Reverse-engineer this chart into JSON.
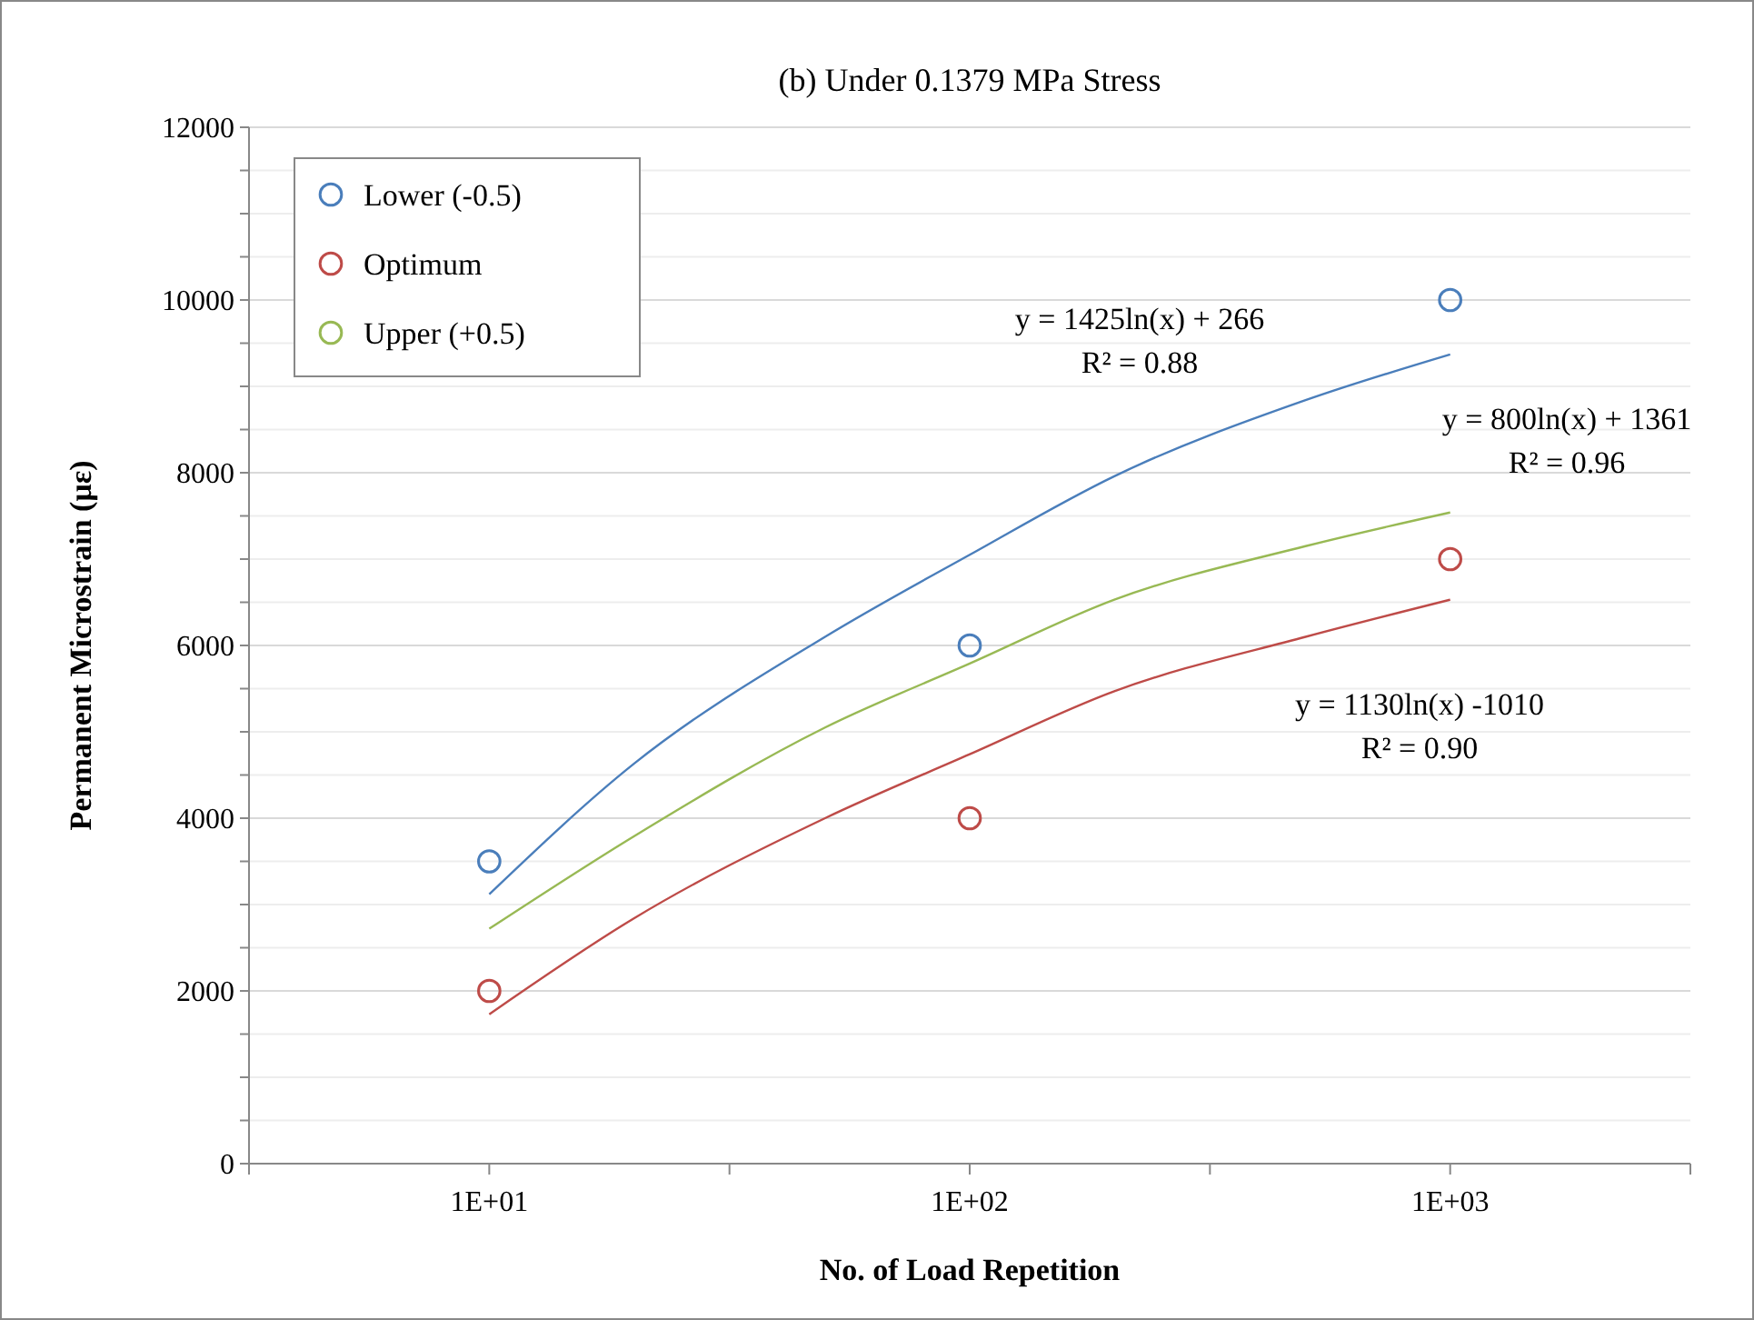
{
  "chart_data": {
    "type": "scatter",
    "title": "(b) Under 0.1379 MPa Stress",
    "xlabel": "No. of Load Repetition",
    "ylabel": "Permanent Microstrain (με)",
    "log": "x",
    "xlim": [
      3.162,
      3162
    ],
    "xticks": [
      {
        "value": 3.162,
        "label": null
      },
      {
        "value": 10,
        "label": "1E+01"
      },
      {
        "value": 31.62,
        "label": null
      },
      {
        "value": 100,
        "label": "1E+02"
      },
      {
        "value": 316.2,
        "label": null
      },
      {
        "value": 1000,
        "label": "1E+03"
      },
      {
        "value": 3162,
        "label": null
      }
    ],
    "ylim": [
      0,
      12000
    ],
    "yticks": [
      0,
      {
        "value": 500,
        "label": null
      },
      {
        "value": 1000,
        "label": null
      },
      {
        "value": 1500,
        "label": null
      },
      2000,
      {
        "value": 2500,
        "label": null
      },
      {
        "value": 3000,
        "label": null
      },
      {
        "value": 3500,
        "label": null
      },
      4000,
      {
        "value": 4500,
        "label": null
      },
      {
        "value": 5000,
        "label": null
      },
      {
        "value": 5500,
        "label": null
      },
      6000,
      {
        "value": 6500,
        "label": null
      },
      {
        "value": 7000,
        "label": null
      },
      {
        "value": 7500,
        "label": null
      },
      8000,
      {
        "value": 8500,
        "label": null
      },
      {
        "value": 9000,
        "label": null
      },
      {
        "value": 9500,
        "label": null
      },
      10000,
      {
        "value": 10500,
        "label": null
      },
      {
        "value": 11000,
        "label": null
      },
      {
        "value": 11500,
        "label": null
      },
      12000
    ],
    "grid": "y",
    "legend": "top left",
    "marker": "circle",
    "series": [
      {
        "name": "Lower (-0.5)",
        "color": "#4a7ebb",
        "x": [
          10,
          100,
          1000
        ],
        "values": [
          3500,
          6000,
          10000
        ]
      },
      {
        "name": "Optimum",
        "color": "#be4b48",
        "x": [
          10,
          100,
          1000
        ],
        "values": [
          2000,
          4000,
          7000
        ]
      },
      {
        "name": "Upper (+0.5)",
        "color": "#98b954",
        "values": [
          null,
          null,
          null
        ]
      },
      {
        "color": "#4a7ebb",
        "type": "line",
        "marker": "none",
        "x": [
          10,
          20,
          50,
          100,
          200,
          500,
          1000
        ],
        "values": [
          3120,
          4630,
          6100,
          7050,
          7960,
          8840,
          9370
        ]
      },
      {
        "color": "#be4b48",
        "type": "line",
        "marker": "none",
        "x": [
          10,
          20,
          50,
          100,
          200,
          500,
          1000
        ],
        "values": [
          1730,
          2840,
          4000,
          4740,
          5470,
          6100,
          6530
        ]
      },
      {
        "color": "#98b954",
        "type": "line",
        "marker": "none",
        "x": [
          10,
          20,
          50,
          100,
          200,
          500,
          1000
        ],
        "values": [
          2720,
          3790,
          5050,
          5790,
          6530,
          7150,
          7540
        ]
      }
    ],
    "annotations": [
      "y = 1425ln(x) + 266\nR² = 0.88",
      "y = 800ln(x) + 1361\nR² = 0.96",
      "y = 1130ln(x) -1010\nR² = 0.90"
    ]
  }
}
